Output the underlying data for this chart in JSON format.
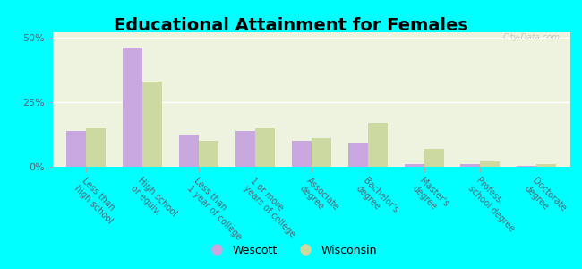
{
  "title": "Educational Attainment for Females",
  "categories": [
    "Less than\nhigh school",
    "High school\nor equiv.",
    "Less than\n1 year of college",
    "1 or more\nyears of college",
    "Associate\ndegree",
    "Bachelor's\ndegree",
    "Master's\ndegree",
    "Profess.\nschool degree",
    "Doctorate\ndegree"
  ],
  "wescott": [
    14,
    46,
    12,
    14,
    10,
    9,
    1,
    1,
    0.5
  ],
  "wisconsin": [
    15,
    33,
    10,
    15,
    11,
    17,
    7,
    2,
    1
  ],
  "wescott_color": "#c9a8e0",
  "wisconsin_color": "#ccd9a0",
  "background_color": "#00ffff",
  "plot_bg_color": "#eef3e0",
  "ylim": [
    0,
    52
  ],
  "yticks": [
    0,
    25,
    50
  ],
  "ytick_labels": [
    "0%",
    "25%",
    "50%"
  ],
  "bar_width": 0.35,
  "title_fontsize": 14,
  "tick_fontsize": 7,
  "legend_fontsize": 9,
  "watermark": "City-Data.com"
}
